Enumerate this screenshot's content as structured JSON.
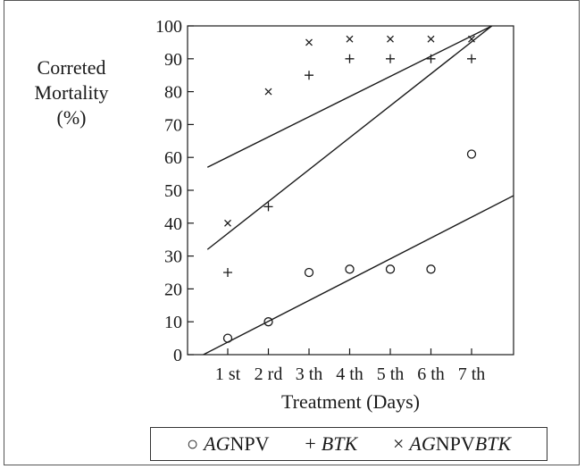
{
  "chart_data": {
    "type": "scatter",
    "title": "",
    "ylabel_lines": [
      "Correted",
      "Mortality",
      "(%)"
    ],
    "xlabel": "Treatment (Days)",
    "categories": [
      "1 st",
      "2 rd",
      "3 th",
      "4 th",
      "5 th",
      "6 th",
      "7 th"
    ],
    "ylim": [
      0,
      100
    ],
    "yticks": [
      0,
      10,
      20,
      30,
      40,
      50,
      60,
      70,
      80,
      90,
      100
    ],
    "series": [
      {
        "name": "AGNPV",
        "marker": "circle",
        "values": [
          5,
          10,
          25,
          26,
          26,
          26,
          61
        ],
        "trend": [
          [
            -0.6,
            0
          ],
          [
            8,
            54.5
          ]
        ]
      },
      {
        "name": "BTK",
        "marker": "plus",
        "values": [
          25,
          45,
          85,
          90,
          90,
          90,
          90
        ],
        "trend": [
          [
            -0.5,
            32
          ],
          [
            6.5,
            100
          ]
        ]
      },
      {
        "name": "AGNPVBTK",
        "marker": "cross",
        "values": [
          40,
          80,
          95,
          96,
          96,
          96,
          96
        ],
        "trend": [
          [
            -0.5,
            57
          ],
          [
            6.5,
            100
          ]
        ]
      }
    ],
    "legend": [
      {
        "symbol": "○",
        "italic": "AG",
        "text": "NPV"
      },
      {
        "symbol": "+",
        "italic": "BTK",
        "text": ""
      },
      {
        "symbol": "×",
        "italic": "AG",
        "text": "NPV",
        "italic2": "BTK"
      }
    ],
    "legend_position": "bottom",
    "grid": false
  }
}
